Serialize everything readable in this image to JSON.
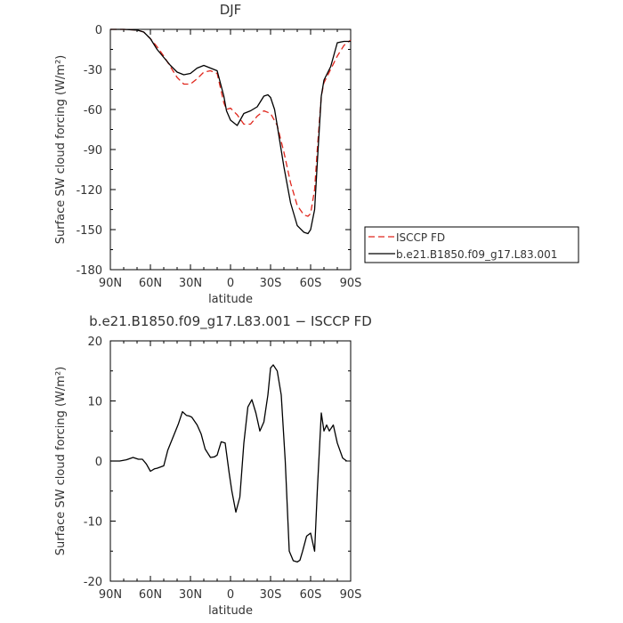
{
  "chart_data": [
    {
      "type": "line",
      "title": "DJF",
      "xlabel": "latitude",
      "ylabel": "Surface SW cloud forcing (W/m²)",
      "xlim": [
        90,
        -90
      ],
      "ylim": [
        -180,
        0
      ],
      "xticks": [
        {
          "v": 90,
          "label": "90N"
        },
        {
          "v": 60,
          "label": "60N"
        },
        {
          "v": 30,
          "label": "30N"
        },
        {
          "v": 0,
          "label": "0"
        },
        {
          "v": -30,
          "label": "30S"
        },
        {
          "v": -60,
          "label": "60S"
        },
        {
          "v": -90,
          "label": "90S"
        }
      ],
      "yticks": [
        0,
        -30,
        -60,
        -90,
        -120,
        -150,
        -180
      ],
      "legend": "right",
      "series": [
        {
          "name": "ISCCP FD",
          "color": "#e0261c",
          "dash": "dashed",
          "x": [
            90,
            80,
            70,
            65,
            60,
            55,
            50,
            45,
            40,
            35,
            30,
            25,
            20,
            15,
            10,
            5,
            3,
            0,
            -5,
            -10,
            -15,
            -20,
            -25,
            -30,
            -35,
            -40,
            -45,
            -50,
            -55,
            -58,
            -60,
            -63,
            -65,
            -68,
            -70,
            -75,
            -80,
            -85,
            -90
          ],
          "y": [
            0,
            0,
            -0.5,
            -2,
            -7,
            -13,
            -20,
            -28,
            -36,
            -41,
            -41,
            -37,
            -32,
            -31,
            -33,
            -55,
            -60,
            -59,
            -64,
            -71,
            -71,
            -65,
            -61,
            -63,
            -72,
            -92,
            -115,
            -132,
            -139,
            -140,
            -138,
            -120,
            -90,
            -50,
            -40,
            -30,
            -20,
            -12,
            -8
          ]
        },
        {
          "name": "b.e21.B1850.f09_g17.L83.001",
          "color": "#000000",
          "dash": "solid",
          "x": [
            90,
            80,
            70,
            65,
            60,
            55,
            50,
            45,
            40,
            35,
            30,
            25,
            20,
            15,
            10,
            5,
            3,
            0,
            -5,
            -10,
            -15,
            -20,
            -25,
            -28,
            -30,
            -33,
            -35,
            -40,
            -45,
            -50,
            -55,
            -58,
            -60,
            -63,
            -65,
            -68,
            -70,
            -75,
            -80,
            -85,
            -90
          ],
          "y": [
            0,
            0,
            -0.5,
            -2,
            -7,
            -15,
            -21,
            -27,
            -32,
            -34,
            -33,
            -29,
            -27,
            -29,
            -31,
            -50,
            -61,
            -68,
            -72,
            -63,
            -61,
            -58,
            -50,
            -49,
            -51,
            -60,
            -72,
            -103,
            -130,
            -147,
            -152,
            -153,
            -150,
            -135,
            -100,
            -50,
            -38,
            -28,
            -10,
            -9,
            -9
          ]
        }
      ]
    },
    {
      "type": "line",
      "title": "b.e21.B1850.f09_g17.L83.001 − ISCCP FD",
      "xlabel": "latitude",
      "ylabel": "Surface SW cloud forcing (W/m²)",
      "xlim": [
        90,
        -90
      ],
      "ylim": [
        -20,
        20
      ],
      "xticks": [
        {
          "v": 90,
          "label": "90N"
        },
        {
          "v": 60,
          "label": "60N"
        },
        {
          "v": 30,
          "label": "30N"
        },
        {
          "v": 0,
          "label": "0"
        },
        {
          "v": -30,
          "label": "30S"
        },
        {
          "v": -60,
          "label": "60S"
        },
        {
          "v": -90,
          "label": "90S"
        }
      ],
      "yticks": [
        20,
        10,
        0,
        -10,
        -20
      ],
      "series": [
        {
          "color": "#000000",
          "dash": "solid",
          "x": [
            90,
            83,
            78,
            73,
            69,
            66,
            63,
            60,
            57,
            55,
            50,
            47,
            43,
            39,
            36,
            33,
            31,
            29,
            25,
            22,
            19,
            15,
            12,
            10,
            7,
            4,
            1,
            -1,
            -4,
            -7,
            -10,
            -13,
            -16,
            -19,
            -22,
            -25,
            -28,
            -30,
            -32,
            -35,
            -38,
            -41,
            -44,
            -47,
            -50,
            -52,
            -54,
            -57,
            -60,
            -63,
            -65,
            -68,
            -70,
            -72,
            -74,
            -77,
            -80,
            -84,
            -87
          ],
          "y": [
            0,
            0,
            0.2,
            0.6,
            0.3,
            0.3,
            -0.5,
            -1.7,
            -1.3,
            -1.2,
            -0.8,
            1.8,
            4,
            6.2,
            8.2,
            7.6,
            7.5,
            7.3,
            6,
            4.5,
            2,
            0.6,
            0.7,
            1,
            3.2,
            3,
            -2,
            -5,
            -8.5,
            -6,
            3,
            9,
            10.2,
            8,
            5,
            6.5,
            11,
            15.5,
            16,
            15,
            11,
            0,
            -15,
            -16.6,
            -16.8,
            -16.5,
            -15,
            -12.5,
            -12,
            -15,
            -5,
            8,
            5,
            6,
            5,
            6,
            3,
            0.5,
            0
          ]
        }
      ]
    }
  ]
}
